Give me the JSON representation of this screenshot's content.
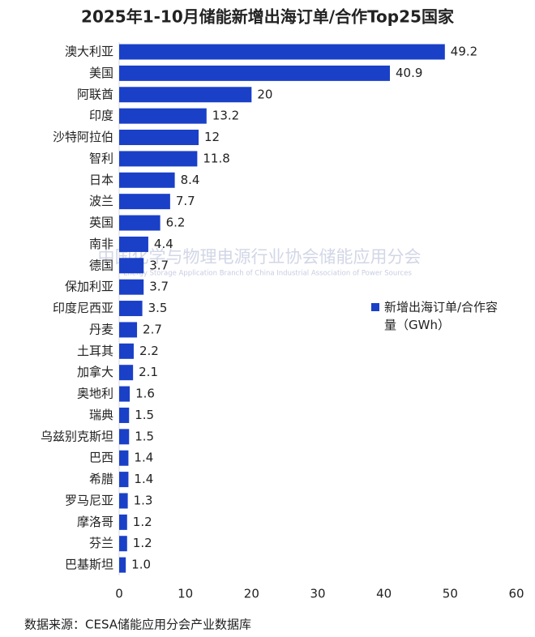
{
  "chart_data": {
    "type": "hbar",
    "title": "2025年1-10月储能新增出海订单/合作Top25国家",
    "categories": [
      "澳大利亚",
      "美国",
      "阿联酋",
      "印度",
      "沙特阿拉伯",
      "智利",
      "日本",
      "波兰",
      "英国",
      "南非",
      "德国",
      "保加利亚",
      "印度尼西亚",
      "丹麦",
      "土耳其",
      "加拿大",
      "奥地利",
      "瑞典",
      "乌兹别克斯坦",
      "巴西",
      "希腊",
      "罗马尼亚",
      "摩洛哥",
      "芬兰",
      "巴基斯坦"
    ],
    "series": [
      {
        "name": "新增出海订单/合作容量（GWh）",
        "color": "#1a40c8",
        "values": [
          49.2,
          40.9,
          20,
          13.2,
          12,
          11.8,
          8.4,
          7.7,
          6.2,
          4.4,
          3.7,
          3.7,
          3.5,
          2.7,
          2.2,
          2.1,
          1.6,
          1.5,
          1.5,
          1.4,
          1.4,
          1.3,
          1.2,
          1.2,
          1.0
        ],
        "value_labels": [
          "49.2",
          "40.9",
          "20",
          "13.2",
          "12",
          "11.8",
          "8.4",
          "7.7",
          "6.2",
          "4.4",
          "3.7",
          "3.7",
          "3.5",
          "2.7",
          "2.2",
          "2.1",
          "1.6",
          "1.5",
          "1.5",
          "1.4",
          "1.4",
          "1.3",
          "1.2",
          "1.2",
          "1.0"
        ]
      }
    ],
    "xlim": [
      0,
      60
    ],
    "xticks": [
      0,
      10,
      20,
      30,
      40,
      50,
      60
    ],
    "watermark": "中国化学与物理电源行业协会储能应用分会",
    "watermark_en": "Energy Storage Application Branch of China Industrial Association of Power Sources",
    "source": "数据来源：CESA储能应用分会产业数据库"
  }
}
